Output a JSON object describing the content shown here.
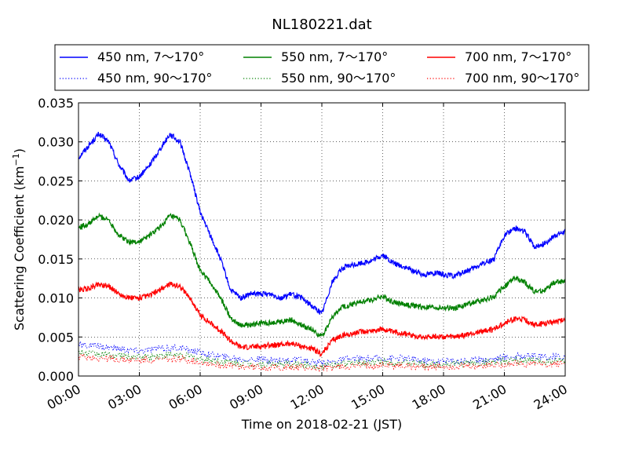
{
  "chart_data": {
    "type": "line",
    "title": "NL180221.dat",
    "xlabel": "Time on 2018-02-21 (JST)",
    "ylabel": "Scattering Coefficient (km",
    "ylabel_sup": "−1",
    "ylabel_close": ")",
    "xlim": [
      0,
      24
    ],
    "ylim": [
      0,
      0.035
    ],
    "grid": true,
    "legend": {
      "placement": "top",
      "columns": 3
    },
    "x_ticks": [
      {
        "value": 0,
        "label": "00:00"
      },
      {
        "value": 3,
        "label": "03:00"
      },
      {
        "value": 6,
        "label": "06:00"
      },
      {
        "value": 9,
        "label": "09:00"
      },
      {
        "value": 12,
        "label": "12:00"
      },
      {
        "value": 15,
        "label": "15:00"
      },
      {
        "value": 18,
        "label": "18:00"
      },
      {
        "value": 21,
        "label": "21:00"
      },
      {
        "value": 24,
        "label": "24:00"
      }
    ],
    "y_ticks": [
      {
        "value": 0,
        "label": "0.000"
      },
      {
        "value": 0.005,
        "label": "0.005"
      },
      {
        "value": 0.01,
        "label": "0.010"
      },
      {
        "value": 0.015,
        "label": "0.015"
      },
      {
        "value": 0.02,
        "label": "0.020"
      },
      {
        "value": 0.025,
        "label": "0.025"
      },
      {
        "value": 0.03,
        "label": "0.030"
      },
      {
        "value": 0.035,
        "label": "0.035"
      }
    ],
    "series": [
      {
        "name": "450 nm, 7～170°",
        "color": "#0000ff",
        "style": "solid",
        "x": [
          0,
          0.5,
          1,
          1.5,
          2,
          2.5,
          3,
          3.5,
          4,
          4.5,
          5,
          5.5,
          6,
          6.5,
          7,
          7.5,
          8,
          8.5,
          9,
          9.5,
          10,
          10.5,
          11,
          11.5,
          12,
          12.5,
          13,
          13.5,
          14,
          14.5,
          15,
          15.5,
          16,
          16.5,
          17,
          17.5,
          18,
          18.5,
          19,
          19.5,
          20,
          20.5,
          21,
          21.5,
          22,
          22.5,
          23,
          23.5,
          24
        ],
        "y": [
          0.028,
          0.0295,
          0.031,
          0.03,
          0.027,
          0.025,
          0.0255,
          0.027,
          0.029,
          0.031,
          0.03,
          0.026,
          0.021,
          0.018,
          0.015,
          0.011,
          0.01,
          0.0105,
          0.0105,
          0.0105,
          0.01,
          0.0105,
          0.01,
          0.009,
          0.008,
          0.012,
          0.0138,
          0.0142,
          0.0145,
          0.0148,
          0.0155,
          0.0145,
          0.014,
          0.0135,
          0.013,
          0.0132,
          0.013,
          0.0128,
          0.0133,
          0.0138,
          0.0145,
          0.015,
          0.018,
          0.019,
          0.0185,
          0.0165,
          0.017,
          0.018,
          0.0185
        ]
      },
      {
        "name": "550 nm, 7～170°",
        "color": "#008000",
        "style": "solid",
        "x": [
          0,
          0.5,
          1,
          1.5,
          2,
          2.5,
          3,
          3.5,
          4,
          4.5,
          5,
          5.5,
          6,
          6.5,
          7,
          7.5,
          8,
          8.5,
          9,
          9.5,
          10,
          10.5,
          11,
          11.5,
          12,
          12.5,
          13,
          13.5,
          14,
          14.5,
          15,
          15.5,
          16,
          16.5,
          17,
          17.5,
          18,
          18.5,
          19,
          19.5,
          20,
          20.5,
          21,
          21.5,
          22,
          22.5,
          23,
          23.5,
          24
        ],
        "y": [
          0.019,
          0.0195,
          0.0205,
          0.02,
          0.018,
          0.0172,
          0.0172,
          0.018,
          0.019,
          0.0205,
          0.02,
          0.017,
          0.0135,
          0.012,
          0.01,
          0.0075,
          0.0065,
          0.0065,
          0.0068,
          0.0068,
          0.007,
          0.0072,
          0.0065,
          0.006,
          0.005,
          0.0075,
          0.0088,
          0.0092,
          0.0095,
          0.0098,
          0.0102,
          0.0095,
          0.0092,
          0.009,
          0.0088,
          0.0088,
          0.0087,
          0.0087,
          0.009,
          0.0095,
          0.0097,
          0.0102,
          0.0115,
          0.0125,
          0.012,
          0.0108,
          0.011,
          0.012,
          0.0122
        ]
      },
      {
        "name": "700 nm, 7～170°",
        "color": "#ff0000",
        "style": "solid",
        "x": [
          0,
          0.5,
          1,
          1.5,
          2,
          2.5,
          3,
          3.5,
          4,
          4.5,
          5,
          5.5,
          6,
          6.5,
          7,
          7.5,
          8,
          8.5,
          9,
          9.5,
          10,
          10.5,
          11,
          11.5,
          12,
          12.5,
          13,
          13.5,
          14,
          14.5,
          15,
          15.5,
          16,
          16.5,
          17,
          17.5,
          18,
          18.5,
          19,
          19.5,
          20,
          20.5,
          21,
          21.5,
          22,
          22.5,
          23,
          23.5,
          24
        ],
        "y": [
          0.011,
          0.0112,
          0.0118,
          0.0115,
          0.0105,
          0.01,
          0.01,
          0.0103,
          0.011,
          0.0118,
          0.0115,
          0.01,
          0.0078,
          0.0068,
          0.0058,
          0.0045,
          0.0037,
          0.0037,
          0.0038,
          0.004,
          0.004,
          0.0042,
          0.0038,
          0.0035,
          0.0028,
          0.0045,
          0.0052,
          0.0054,
          0.0057,
          0.0058,
          0.006,
          0.0056,
          0.0055,
          0.0052,
          0.005,
          0.0051,
          0.005,
          0.005,
          0.0052,
          0.0055,
          0.0058,
          0.006,
          0.0068,
          0.0073,
          0.0072,
          0.0065,
          0.0067,
          0.007,
          0.0072
        ]
      },
      {
        "name": "450 nm, 90～170°",
        "color": "#0000ff",
        "style": "dotted",
        "x": [
          0,
          1,
          2,
          3,
          4,
          5,
          6,
          7,
          8,
          9,
          10,
          11,
          12,
          13,
          14,
          15,
          16,
          17,
          18,
          19,
          20,
          21,
          22,
          23,
          24
        ],
        "y": [
          0.004,
          0.0038,
          0.0035,
          0.0032,
          0.0035,
          0.0036,
          0.003,
          0.0025,
          0.0022,
          0.0021,
          0.002,
          0.002,
          0.0016,
          0.0021,
          0.0022,
          0.0023,
          0.0023,
          0.002,
          0.0019,
          0.002,
          0.0021,
          0.0024,
          0.0026,
          0.0024,
          0.0025
        ]
      },
      {
        "name": "550 nm, 90～170°",
        "color": "#008000",
        "style": "dotted",
        "x": [
          0,
          1,
          2,
          3,
          4,
          5,
          6,
          7,
          8,
          9,
          10,
          11,
          12,
          13,
          14,
          15,
          16,
          17,
          18,
          19,
          20,
          21,
          22,
          23,
          24
        ],
        "y": [
          0.003,
          0.0028,
          0.0026,
          0.0024,
          0.0026,
          0.0027,
          0.0022,
          0.0018,
          0.0016,
          0.0015,
          0.0015,
          0.0015,
          0.0012,
          0.0016,
          0.0017,
          0.0018,
          0.0017,
          0.0015,
          0.0015,
          0.0016,
          0.0017,
          0.0019,
          0.002,
          0.0019,
          0.002
        ]
      },
      {
        "name": "700 nm, 90～170°",
        "color": "#ff0000",
        "style": "dotted",
        "x": [
          0,
          1,
          2,
          3,
          4,
          5,
          6,
          7,
          8,
          9,
          10,
          11,
          12,
          13,
          14,
          15,
          16,
          17,
          18,
          19,
          20,
          21,
          22,
          23,
          24
        ],
        "y": [
          0.0025,
          0.0023,
          0.0021,
          0.002,
          0.0021,
          0.0022,
          0.0018,
          0.0014,
          0.0012,
          0.0011,
          0.0011,
          0.0011,
          0.0009,
          0.0012,
          0.0013,
          0.0014,
          0.0013,
          0.0012,
          0.0012,
          0.0012,
          0.0013,
          0.0015,
          0.0016,
          0.0015,
          0.0016
        ]
      }
    ]
  }
}
